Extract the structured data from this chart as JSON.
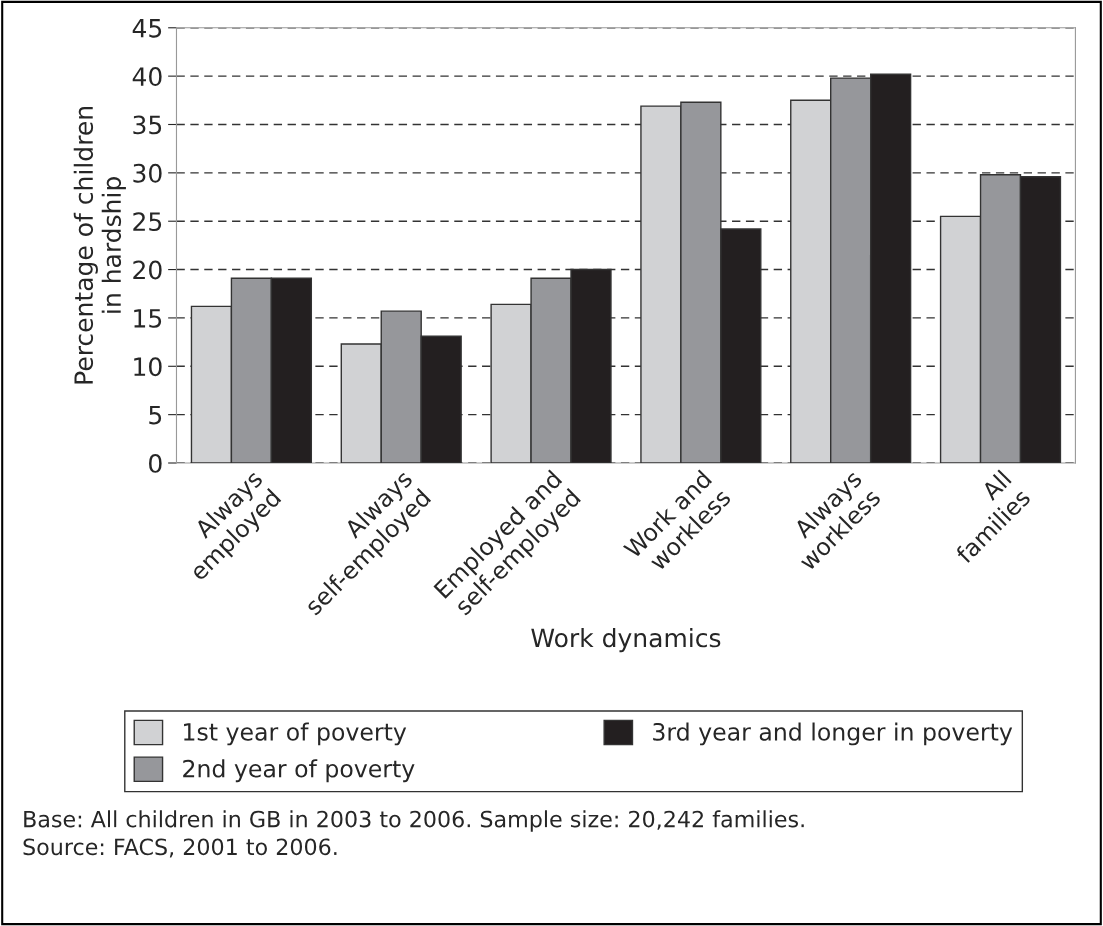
{
  "chart_data": {
    "type": "bar",
    "categories": [
      "Always\nemployed",
      "Always\nself-employed",
      "Employed and\nself-employed",
      "Work and\nworkless",
      "Always\nworkless",
      "All\nfamilies"
    ],
    "series": [
      {
        "name": "1st year of poverty",
        "color": "#d1d2d4",
        "values": [
          16.2,
          12.3,
          16.4,
          36.9,
          37.5,
          25.5
        ]
      },
      {
        "name": "2nd year of poverty",
        "color": "#96979b",
        "values": [
          19.1,
          15.7,
          19.1,
          37.3,
          39.8,
          29.8
        ]
      },
      {
        "name": "3rd year and longer in poverty",
        "color": "#231f20",
        "values": [
          19.1,
          13.1,
          20.0,
          24.2,
          40.2,
          29.6
        ]
      }
    ],
    "xlabel": "Work dynamics",
    "ylabel": "Percentage of children\nin hardship",
    "ylim": [
      0,
      45
    ],
    "yticks": [
      0,
      5,
      10,
      15,
      20,
      25,
      30,
      35,
      40,
      45
    ],
    "grid": "y",
    "legend": "bottom",
    "annotations": [
      "Base: All children in GB in 2003 to 2006. Sample size: 20,242 families.",
      "Source: FACS, 2001 to 2006."
    ]
  }
}
